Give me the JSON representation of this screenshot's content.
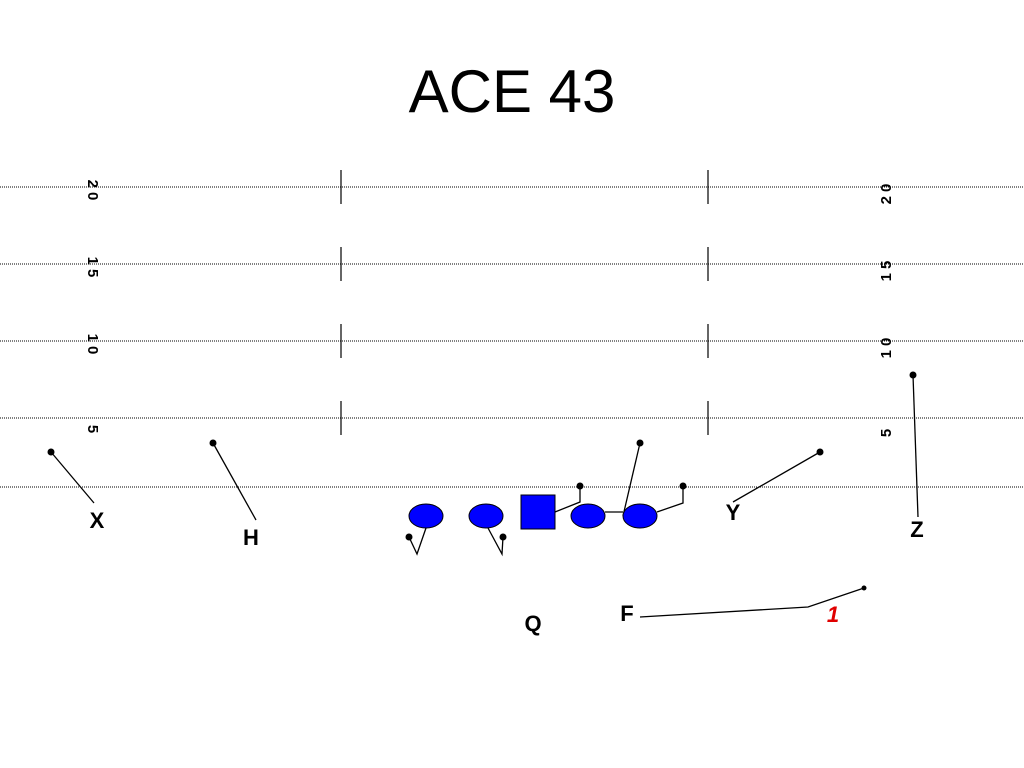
{
  "title": "ACE 43",
  "yard_numbers": {
    "left": [
      "20",
      "15",
      "10",
      "5"
    ],
    "right": [
      "20",
      "15",
      "10",
      "5"
    ]
  },
  "players": {
    "x": "X",
    "h": "H",
    "y": "Y",
    "z": "Z",
    "q": "Q",
    "f": "F"
  },
  "read": "1"
}
